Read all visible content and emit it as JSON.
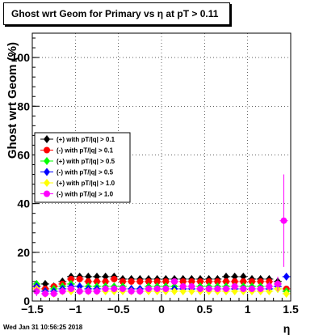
{
  "title": "Ghost wrt Geom for Primary vs   η at pT > 0.11",
  "timestamp": "Wed Jan 31 10:56:25 2018",
  "chart_data": {
    "type": "scatter",
    "xlabel": "η",
    "ylabel": "Ghost wrt Geom (%)",
    "xlim": [
      -1.5,
      1.5
    ],
    "ylim": [
      0,
      110
    ],
    "x_ticks": [
      "−1.5",
      "−1",
      "−0.5",
      "0",
      "0.5",
      "1",
      "1.5"
    ],
    "y_ticks": [
      "0",
      "20",
      "40",
      "60",
      "80",
      "100"
    ],
    "grid": true,
    "legend_position": "left-middle",
    "series": [
      {
        "name": "(+) with pT/|q| > 0.1",
        "color": "#000000",
        "marker": "diamond",
        "x": [
          -1.45,
          -1.35,
          -1.25,
          -1.15,
          -1.05,
          -0.95,
          -0.85,
          -0.75,
          -0.65,
          -0.55,
          -0.45,
          -0.35,
          -0.25,
          -0.15,
          -0.05,
          0.05,
          0.15,
          0.25,
          0.35,
          0.45,
          0.55,
          0.65,
          0.75,
          0.85,
          0.95,
          1.05,
          1.15,
          1.25,
          1.35,
          1.45
        ],
        "y": [
          5,
          7,
          6,
          8,
          10,
          10,
          10,
          10,
          10,
          10,
          9,
          9,
          9,
          9,
          9,
          9,
          9,
          9,
          9,
          9,
          9,
          9,
          10,
          10,
          10,
          9,
          9,
          9,
          8,
          4
        ]
      },
      {
        "name": "(-) with pT/|q| > 0.1",
        "color": "#ff0000",
        "marker": "circle",
        "x": [
          -1.45,
          -1.35,
          -1.25,
          -1.15,
          -1.05,
          -0.95,
          -0.85,
          -0.75,
          -0.65,
          -0.55,
          -0.45,
          -0.35,
          -0.25,
          -0.15,
          -0.05,
          0.05,
          0.15,
          0.25,
          0.35,
          0.45,
          0.55,
          0.65,
          0.75,
          0.85,
          0.95,
          1.05,
          1.15,
          1.25,
          1.35,
          1.45
        ],
        "y": [
          6,
          5,
          6,
          7,
          9,
          9,
          8,
          8,
          8,
          9,
          8,
          8,
          8,
          8,
          8,
          8,
          8,
          8,
          8,
          8,
          8,
          8,
          8,
          8,
          8,
          8,
          8,
          8,
          7,
          5
        ]
      },
      {
        "name": "(+) with pT/|q| > 0.5",
        "color": "#00ff00",
        "marker": "diamond",
        "x": [
          -1.45,
          -1.35,
          -1.25,
          -1.15,
          -1.05,
          -0.95,
          -0.85,
          -0.75,
          -0.65,
          -0.55,
          -0.45,
          -0.35,
          -0.25,
          -0.15,
          -0.05,
          0.05,
          0.15,
          0.25,
          0.35,
          0.45,
          0.55,
          0.65,
          0.75,
          0.85,
          0.95,
          1.05,
          1.15,
          1.25,
          1.35,
          1.45
        ],
        "y": [
          7,
          4,
          5,
          6,
          7,
          6,
          6,
          6,
          6,
          6,
          6,
          5,
          5,
          6,
          6,
          6,
          6,
          6,
          6,
          6,
          6,
          6,
          6,
          6,
          6,
          6,
          6,
          6,
          5,
          4
        ]
      },
      {
        "name": "(-) with pT/|q| > 0.5",
        "color": "#0000ff",
        "marker": "diamond",
        "x": [
          -1.45,
          -1.35,
          -1.25,
          -1.15,
          -1.05,
          -0.95,
          -0.85,
          -0.75,
          -0.65,
          -0.55,
          -0.45,
          -0.35,
          -0.25,
          -0.15,
          -0.05,
          0.05,
          0.15,
          0.25,
          0.35,
          0.45,
          0.55,
          0.65,
          0.75,
          0.85,
          0.95,
          1.05,
          1.15,
          1.25,
          1.35,
          1.45
        ],
        "y": [
          6,
          4,
          4,
          5,
          6,
          6,
          5,
          5,
          5,
          5,
          5,
          5,
          5,
          5,
          5,
          5,
          5,
          5,
          5,
          5,
          5,
          5,
          5,
          5,
          5,
          5,
          5,
          5,
          6,
          10
        ]
      },
      {
        "name": "(+) with pT/|q| > 1.0",
        "color": "#ffff00",
        "marker": "diamond",
        "x": [
          -1.45,
          -1.35,
          -1.25,
          -1.15,
          -1.05,
          -0.95,
          -0.85,
          -0.75,
          -0.65,
          -0.55,
          -0.45,
          -0.35,
          -0.25,
          -0.15,
          -0.05,
          0.05,
          0.15,
          0.25,
          0.35,
          0.45,
          0.55,
          0.65,
          0.75,
          0.85,
          0.95,
          1.05,
          1.15,
          1.25,
          1.35,
          1.45
        ],
        "y": [
          5,
          3,
          3,
          4,
          4,
          4,
          4,
          4,
          4,
          4,
          4,
          4,
          4,
          4,
          4,
          4,
          4,
          4,
          4,
          4,
          4,
          4,
          4,
          4,
          4,
          4,
          4,
          4,
          5,
          3
        ]
      },
      {
        "name": "(-) with pT/|q| > 1.0",
        "color": "#ff00ff",
        "marker": "circle",
        "x": [
          -1.45,
          -1.35,
          -1.25,
          -1.15,
          -1.05,
          -0.95,
          -0.85,
          -0.75,
          -0.65,
          -0.55,
          -0.45,
          -0.35,
          -0.25,
          -0.15,
          -0.05,
          0.05,
          0.15,
          0.25,
          0.35,
          0.45,
          0.55,
          0.65,
          0.75,
          0.85,
          0.95,
          1.05,
          1.15,
          1.25,
          1.35,
          1.42
        ],
        "y": [
          4,
          3,
          3,
          4,
          5,
          4,
          4,
          4,
          5,
          5,
          5,
          4,
          4,
          5,
          5,
          5,
          8,
          6,
          6,
          5,
          5,
          5,
          5,
          6,
          5,
          5,
          5,
          6,
          7,
          33
        ],
        "yerr": [
          2,
          1,
          1,
          1,
          1,
          1,
          1,
          1,
          1,
          1,
          1,
          1,
          1,
          1,
          1,
          1,
          1,
          1,
          1,
          1,
          1,
          1,
          1,
          1,
          1,
          1,
          1,
          2,
          3,
          19
        ]
      }
    ]
  }
}
